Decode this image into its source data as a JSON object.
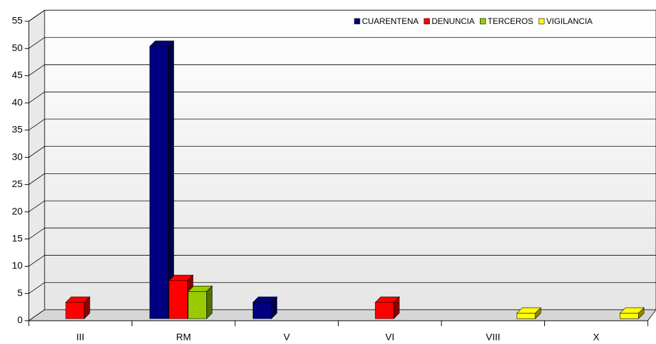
{
  "chart_data": {
    "type": "bar3d",
    "categories": [
      "III",
      "RM",
      "V",
      "VI",
      "VIII",
      "X"
    ],
    "series": [
      {
        "name": "CUARENTENA",
        "color": "#000080",
        "values": [
          0,
          50,
          3,
          0,
          0,
          0
        ]
      },
      {
        "name": "DENUNCIA",
        "color": "#ff0000",
        "values": [
          3,
          7,
          0,
          3,
          0,
          0
        ]
      },
      {
        "name": "TERCEROS",
        "color": "#99cc00",
        "values": [
          0,
          5,
          0,
          0,
          0,
          0
        ]
      },
      {
        "name": "VIGILANCIA",
        "color": "#ffff00",
        "values": [
          0,
          0,
          0,
          0,
          1,
          1
        ]
      }
    ],
    "ylim": [
      0,
      55
    ],
    "yticks": [
      0,
      5,
      10,
      15,
      20,
      25,
      30,
      35,
      40,
      45,
      50,
      55
    ],
    "grid": true,
    "legend": "top-right"
  }
}
